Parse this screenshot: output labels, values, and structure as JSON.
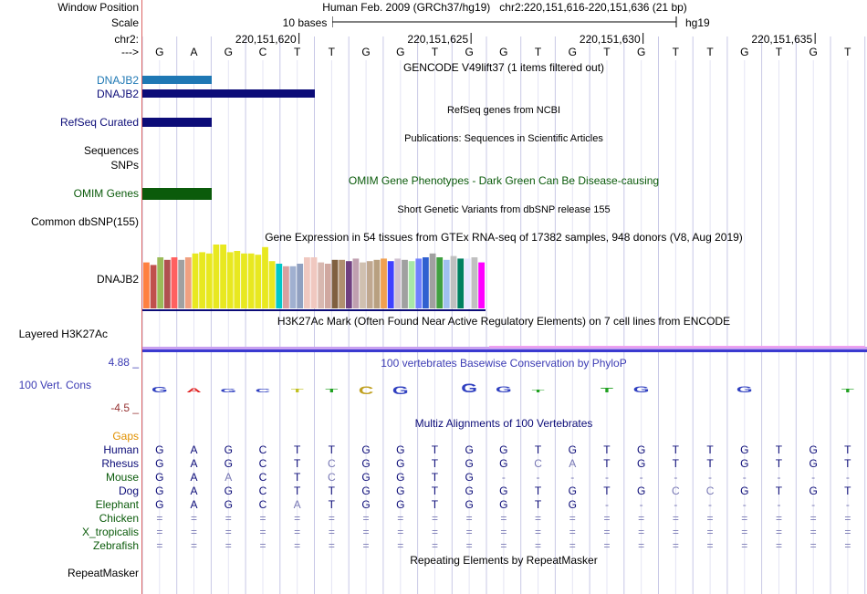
{
  "header": {
    "window_position_label": "Window Position",
    "window_position_text": "Human Feb. 2009 (GRCh37/hg19)   chr2:220,151,616-220,151,636 (21 bp)",
    "scale_label": "Scale",
    "scale_text": "10 bases",
    "assembly": "hg19",
    "chrom_label": "chr2:",
    "strand_label": "--->",
    "positions": [
      "220,151,620",
      "220,151,625",
      "220,151,630",
      "220,151,635"
    ],
    "bases": [
      "G",
      "A",
      "G",
      "C",
      "T",
      "T",
      "G",
      "G",
      "T",
      "G",
      "G",
      "T",
      "G",
      "T",
      "G",
      "T",
      "T",
      "G",
      "T",
      "G",
      "T"
    ]
  },
  "colors": {
    "gencode": "#1f78b4",
    "navy": "#0c0c78",
    "omim": "#0b5b0b",
    "grid": "#c8c8e6",
    "sidebar_line": "#dc6464"
  },
  "tracks": {
    "gencode_title": "GENCODE V49lift37 (1 items filtered out)",
    "gencode_items": [
      "DNAJB2",
      "DNAJB2"
    ],
    "refseq_title": "RefSeq genes from NCBI",
    "refseq_label": "RefSeq Curated",
    "publications_title": "Publications: Sequences in Scientific Articles",
    "sequences_label": "Sequences",
    "snps_label": "SNPs",
    "omim_title": "OMIM Gene Phenotypes - Dark Green Can Be Disease-causing",
    "omim_label": "OMIM Genes",
    "dbsnp_title": "Short Genetic Variants from dbSNP release 155",
    "dbsnp_label": "Common dbSNP(155)",
    "gtex_title": "Gene Expression in 54 tissues from GTEx RNA-seq of 17382 samples, 948 donors (V8, Aug 2019)",
    "gtex_label": "DNAJB2",
    "h3k27ac_title": "H3K27Ac Mark (Often Found Near Active Regulatory Elements) on 7 cell lines from ENCODE",
    "h3k27ac_label": "Layered H3K27Ac",
    "phylop_title": "100 vertebrates Basewise Conservation by PhyloP",
    "phylop_label": "100 Vert. Cons",
    "phylop_max": "4.88 _",
    "phylop_min": "-4.5 _",
    "multiz_title": "Multiz Alignments of 100 Vertebrates",
    "gaps_label": "Gaps",
    "repeat_title": "Repeating Elements by RepeatMasker",
    "repeat_label": "RepeatMasker"
  },
  "gtex_bars": [
    {
      "value": 0.72,
      "color": "#ff8040"
    },
    {
      "value": 0.68,
      "color": "#c0504d"
    },
    {
      "value": 0.8,
      "color": "#9bbb59"
    },
    {
      "value": 0.76,
      "color": "#b05050"
    },
    {
      "value": 0.8,
      "color": "#ff6060"
    },
    {
      "value": 0.76,
      "color": "#a0a0a0"
    },
    {
      "value": 0.8,
      "color": "#f0a080"
    },
    {
      "value": 0.86,
      "color": "#e8e820"
    },
    {
      "value": 0.88,
      "color": "#e8e820"
    },
    {
      "value": 0.86,
      "color": "#e8e820"
    },
    {
      "value": 1.0,
      "color": "#e8e820"
    },
    {
      "value": 1.0,
      "color": "#e8e820"
    },
    {
      "value": 0.88,
      "color": "#e8e820"
    },
    {
      "value": 0.9,
      "color": "#e8e820"
    },
    {
      "value": 0.86,
      "color": "#e8e820"
    },
    {
      "value": 0.86,
      "color": "#e8e820"
    },
    {
      "value": 0.84,
      "color": "#e8e820"
    },
    {
      "value": 0.96,
      "color": "#e8e820"
    },
    {
      "value": 0.74,
      "color": "#e8e820"
    },
    {
      "value": 0.7,
      "color": "#00c8c8"
    },
    {
      "value": 0.66,
      "color": "#d8a0a0"
    },
    {
      "value": 0.66,
      "color": "#a0b0d0"
    },
    {
      "value": 0.7,
      "color": "#90a0c0"
    },
    {
      "value": 0.8,
      "color": "#f0c8c0"
    },
    {
      "value": 0.8,
      "color": "#f0c8c0"
    },
    {
      "value": 0.72,
      "color": "#d8b8b0"
    },
    {
      "value": 0.7,
      "color": "#d0a8a0"
    },
    {
      "value": 0.76,
      "color": "#806040"
    },
    {
      "value": 0.76,
      "color": "#b09070"
    },
    {
      "value": 0.74,
      "color": "#704080"
    },
    {
      "value": 0.78,
      "color": "#c0a0b0"
    },
    {
      "value": 0.72,
      "color": "#d0c0b0"
    },
    {
      "value": 0.74,
      "color": "#c0a890"
    },
    {
      "value": 0.76,
      "color": "#b8a080"
    },
    {
      "value": 0.78,
      "color": "#f0a050"
    },
    {
      "value": 0.74,
      "color": "#4040ff"
    },
    {
      "value": 0.78,
      "color": "#d0c0d0"
    },
    {
      "value": 0.76,
      "color": "#a0a0a0"
    },
    {
      "value": 0.74,
      "color": "#a8e8a8"
    },
    {
      "value": 0.78,
      "color": "#7080ff"
    },
    {
      "value": 0.8,
      "color": "#3060d0"
    },
    {
      "value": 0.86,
      "color": "#a0a0a0"
    },
    {
      "value": 0.8,
      "color": "#40a040"
    },
    {
      "value": 0.76,
      "color": "#a0c0f0"
    },
    {
      "value": 0.82,
      "color": "#c0c0c0"
    },
    {
      "value": 0.78,
      "color": "#008060"
    },
    {
      "value": 0.78,
      "color": "#e8e8ff"
    },
    {
      "value": 0.8,
      "color": "#c0c0c0"
    },
    {
      "value": 0.72,
      "color": "#ff00ff"
    }
  ],
  "phylop_letters": [
    {
      "base": "G",
      "color": "#3040c0",
      "dir": "up",
      "value": 0.3
    },
    {
      "base": "A",
      "color": "#e02020",
      "dir": "up",
      "value": 0.15
    },
    {
      "base": "G",
      "color": "#3040c0",
      "dir": "up",
      "value": 0.12
    },
    {
      "base": "C",
      "color": "#3040c0",
      "dir": "up",
      "value": 0.1
    },
    {
      "base": "T",
      "color": "#c0c020",
      "dir": "up",
      "value": 0.12
    },
    {
      "base": "T",
      "color": "#20a020",
      "dir": "up",
      "value": 0.1
    },
    {
      "base": "C",
      "color": "#c0a020",
      "dir": "down",
      "value": 0.55
    },
    {
      "base": "G",
      "color": "#3040c0",
      "dir": "down",
      "value": 0.6
    },
    {
      "base": "",
      "color": "#3040c0",
      "dir": "up",
      "value": 0
    },
    {
      "base": "G",
      "color": "#3040c0",
      "dir": "up",
      "value": 0.7
    },
    {
      "base": "G",
      "color": "#3040c0",
      "dir": "up",
      "value": 0.35
    },
    {
      "base": "T",
      "color": "#20a020",
      "dir": "up",
      "value": 0.05
    },
    {
      "base": "",
      "color": "#3040c0",
      "dir": "up",
      "value": 0
    },
    {
      "base": "T",
      "color": "#20a020",
      "dir": "up",
      "value": 0.25
    },
    {
      "base": "G",
      "color": "#3040c0",
      "dir": "up",
      "value": 0.4
    },
    {
      "base": "",
      "color": "#3040c0",
      "dir": "up",
      "value": 0
    },
    {
      "base": "",
      "color": "#3040c0",
      "dir": "up",
      "value": 0
    },
    {
      "base": "G",
      "color": "#3040c0",
      "dir": "up",
      "value": 0.35
    },
    {
      "base": "",
      "color": "#3040c0",
      "dir": "up",
      "value": 0
    },
    {
      "base": "",
      "color": "#3040c0",
      "dir": "up",
      "value": 0
    },
    {
      "base": "T",
      "color": "#20a020",
      "dir": "up",
      "value": 0.08
    }
  ],
  "multiz": [
    {
      "species": "Human",
      "color": "#0c0c78",
      "row": [
        "G",
        "A",
        "G",
        "C",
        "T",
        "T",
        "G",
        "G",
        "T",
        "G",
        "G",
        "T",
        "G",
        "T",
        "G",
        "T",
        "T",
        "G",
        "T",
        "G",
        "T"
      ],
      "diff": []
    },
    {
      "species": "Rhesus",
      "color": "#0c0c78",
      "row": [
        "G",
        "A",
        "G",
        "C",
        "T",
        "C",
        "G",
        "G",
        "T",
        "G",
        "G",
        "C",
        "A",
        "T",
        "G",
        "T",
        "T",
        "G",
        "T",
        "G",
        "T"
      ],
      "diff": [
        5,
        11,
        12
      ]
    },
    {
      "species": "Mouse",
      "color": "#0b5b0b",
      "row": [
        "G",
        "A",
        "A",
        "C",
        "T",
        "C",
        "G",
        "G",
        "T",
        "G",
        "-",
        "-",
        "-",
        "-",
        "-",
        "-",
        "-",
        "-",
        "-",
        "-",
        "-"
      ],
      "diff": [
        2,
        5
      ]
    },
    {
      "species": "Dog",
      "color": "#0c0c78",
      "row": [
        "G",
        "A",
        "G",
        "C",
        "T",
        "T",
        "G",
        "G",
        "T",
        "G",
        "G",
        "T",
        "G",
        "T",
        "G",
        "C",
        "C",
        "G",
        "T",
        "G",
        "T"
      ],
      "diff": [
        15,
        16
      ]
    },
    {
      "species": "Elephant",
      "color": "#0b5b0b",
      "row": [
        "G",
        "A",
        "G",
        "C",
        "A",
        "T",
        "G",
        "G",
        "T",
        "G",
        "G",
        "T",
        "G",
        "-",
        "-",
        "-",
        "-",
        "-",
        "-",
        "-",
        "-"
      ],
      "diff": [
        4
      ]
    },
    {
      "species": "Chicken",
      "color": "#0b5b0b",
      "row": [
        "=",
        "=",
        "=",
        "=",
        "=",
        "=",
        "=",
        "=",
        "=",
        "=",
        "=",
        "=",
        "=",
        "=",
        "=",
        "=",
        "=",
        "=",
        "=",
        "=",
        "="
      ],
      "diff": []
    },
    {
      "species": "X_tropicalis",
      "color": "#0b5b0b",
      "row": [
        "=",
        "=",
        "=",
        "=",
        "=",
        "=",
        "=",
        "=",
        "=",
        "=",
        "=",
        "=",
        "=",
        "=",
        "=",
        "=",
        "=",
        "=",
        "=",
        "=",
        "="
      ],
      "diff": []
    },
    {
      "species": "Zebrafish",
      "color": "#0b5b0b",
      "row": [
        "=",
        "=",
        "=",
        "=",
        "=",
        "=",
        "=",
        "=",
        "=",
        "=",
        "=",
        "=",
        "=",
        "=",
        "=",
        "=",
        "=",
        "=",
        "=",
        "=",
        "="
      ],
      "diff": []
    }
  ]
}
